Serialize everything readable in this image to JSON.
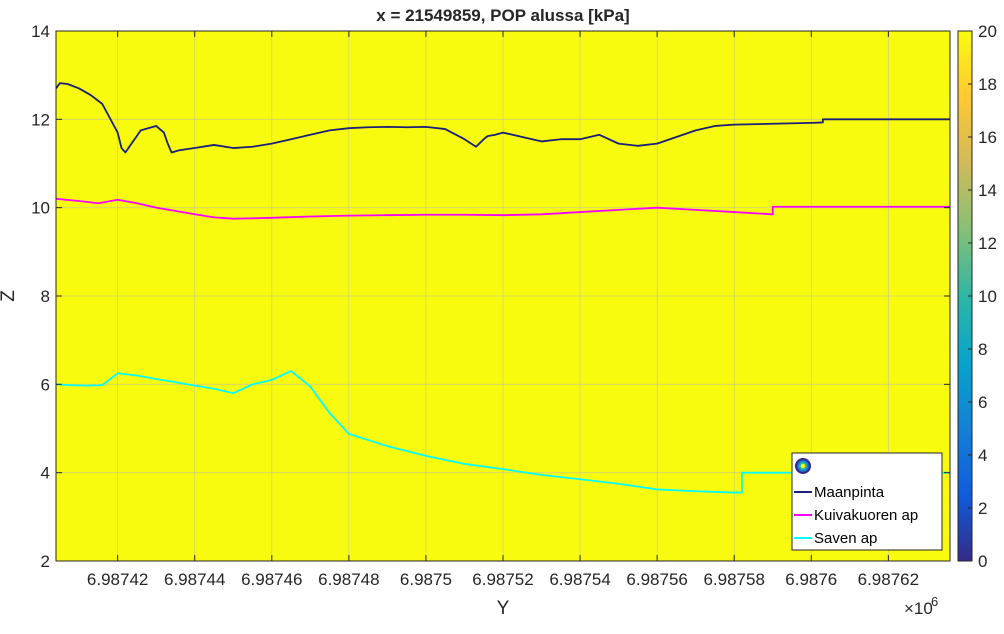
{
  "chart_data": {
    "type": "line",
    "title": "x = 21549859, POP alussa [kPa]",
    "xlabel": "Y",
    "ylabel": "Z",
    "x_exponent_label": "×10",
    "x_exponent_power": "6",
    "x_scale_factor": 1000000,
    "xlim": [
      6.987404,
      6.987636
    ],
    "ylim": [
      2,
      14
    ],
    "x_ticks": [
      6.98742,
      6.98744,
      6.98746,
      6.98748,
      6.9875,
      6.98752,
      6.98754,
      6.98756,
      6.98758,
      6.9876,
      6.98762
    ],
    "x_tick_labels": [
      "6.98742",
      "6.98744",
      "6.98746",
      "6.98748",
      "6.9875",
      "6.98752",
      "6.98754",
      "6.98756",
      "6.98758",
      "6.9876",
      "6.98762"
    ],
    "y_ticks": [
      2,
      4,
      6,
      8,
      10,
      12,
      14
    ],
    "y_tick_labels": [
      "2",
      "4",
      "6",
      "8",
      "10",
      "12",
      "14"
    ],
    "grid": true,
    "background_field_color": "#f9fb0e",
    "colorbar": {
      "min": 0,
      "max": 20,
      "ticks": [
        0,
        2,
        4,
        6,
        8,
        10,
        12,
        14,
        16,
        18,
        20
      ],
      "tick_labels": [
        "0",
        "2",
        "4",
        "6",
        "8",
        "10",
        "12",
        "14",
        "16",
        "18",
        "20"
      ],
      "colormap": "parula",
      "stops": [
        "#352a87",
        "#0f5cdd",
        "#1481d6",
        "#06a4ca",
        "#2eb7a4",
        "#87bf77",
        "#d1bb59",
        "#fec832",
        "#f9fb0e"
      ]
    },
    "legend_position": "bottom-right",
    "legend_marker_icon": "contour-rings-icon",
    "series": [
      {
        "name": "Maanpinta",
        "color": "#1a1f78",
        "x": [
          6.987404,
          6.987405,
          6.987407,
          6.98741,
          6.987413,
          6.987416,
          6.98742,
          6.987421,
          6.987422,
          6.987424,
          6.987426,
          6.987428,
          6.98743,
          6.987432,
          6.987433,
          6.987434,
          6.987436,
          6.98744,
          6.987445,
          6.98745,
          6.987455,
          6.98746,
          6.987465,
          6.98747,
          6.987475,
          6.98748,
          6.987485,
          6.98749,
          6.987495,
          6.9875,
          6.987505,
          6.98751,
          6.987513,
          6.987515,
          6.987516,
          6.987518,
          6.98752,
          6.987525,
          6.98753,
          6.987535,
          6.98754,
          6.987545,
          6.98755,
          6.987555,
          6.98756,
          6.987565,
          6.98757,
          6.987575,
          6.98758,
          6.98759,
          6.9876,
          6.987603,
          6.987603,
          6.987636
        ],
        "y": [
          12.7,
          12.82,
          12.8,
          12.7,
          12.55,
          12.35,
          11.7,
          11.35,
          11.25,
          11.5,
          11.75,
          11.8,
          11.85,
          11.7,
          11.45,
          11.25,
          11.3,
          11.35,
          11.42,
          11.35,
          11.38,
          11.45,
          11.55,
          11.65,
          11.75,
          11.8,
          11.82,
          11.83,
          11.82,
          11.83,
          11.78,
          11.55,
          11.38,
          11.55,
          11.62,
          11.65,
          11.7,
          11.6,
          11.5,
          11.55,
          11.55,
          11.65,
          11.45,
          11.4,
          11.45,
          11.6,
          11.75,
          11.85,
          11.88,
          11.9,
          11.92,
          11.93,
          12.0,
          12.0
        ]
      },
      {
        "name": "Kuivakuoren ap",
        "color": "#ff00ff",
        "x": [
          6.987404,
          6.98741,
          6.987415,
          6.98742,
          6.987425,
          6.98743,
          6.98744,
          6.987445,
          6.98745,
          6.98746,
          6.98747,
          6.98748,
          6.98749,
          6.9875,
          6.98751,
          6.98752,
          6.98753,
          6.98754,
          6.98755,
          6.98756,
          6.98757,
          6.98758,
          6.98759,
          6.98759,
          6.987636
        ],
        "y": [
          10.2,
          10.15,
          10.1,
          10.18,
          10.1,
          10.0,
          9.85,
          9.78,
          9.75,
          9.77,
          9.8,
          9.82,
          9.83,
          9.84,
          9.84,
          9.83,
          9.85,
          9.9,
          9.95,
          10.0,
          9.95,
          9.9,
          9.85,
          10.02,
          10.02
        ]
      },
      {
        "name": "Saven ap",
        "color": "#00ffff",
        "x": [
          6.987404,
          6.987408,
          6.987412,
          6.987416,
          6.98742,
          6.987425,
          6.98743,
          6.987435,
          6.98744,
          6.987445,
          6.98745,
          6.987455,
          6.98746,
          6.987465,
          6.98747,
          6.987475,
          6.98748,
          6.98749,
          6.9875,
          6.98751,
          6.98752,
          6.98753,
          6.98754,
          6.98755,
          6.98756,
          6.98757,
          6.98758,
          6.987582,
          6.987582,
          6.987636
        ],
        "y": [
          6.0,
          5.98,
          5.97,
          5.98,
          6.25,
          6.2,
          6.12,
          6.05,
          5.97,
          5.9,
          5.8,
          6.0,
          6.1,
          6.3,
          5.95,
          5.35,
          4.88,
          4.6,
          4.38,
          4.2,
          4.08,
          3.95,
          3.85,
          3.75,
          3.62,
          3.58,
          3.55,
          3.55,
          4.0,
          4.0
        ]
      }
    ]
  }
}
